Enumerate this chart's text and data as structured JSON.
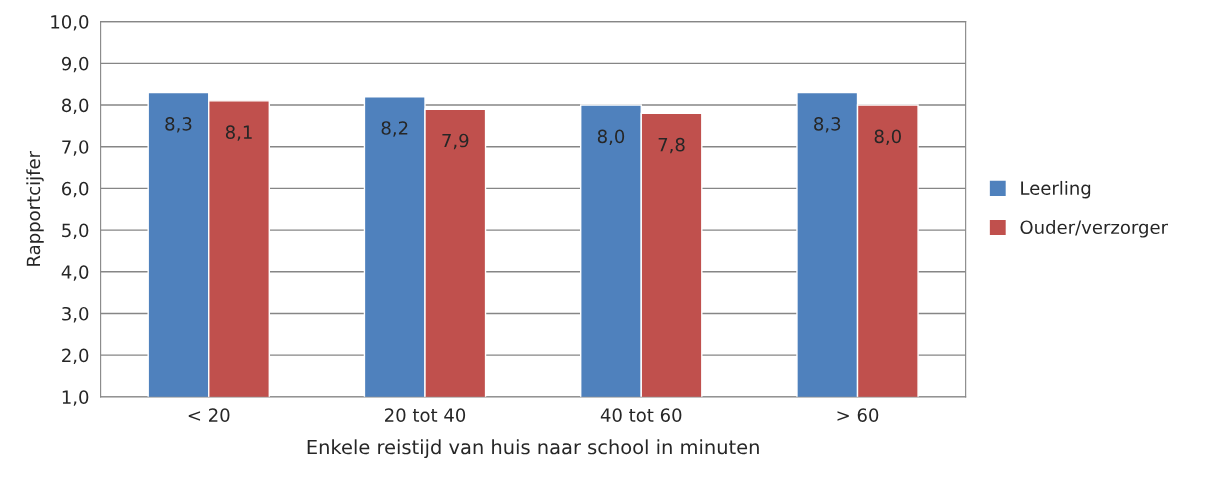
{
  "chart_data": {
    "type": "bar",
    "xlabel": "Enkele reistijd van huis naar school in minuten",
    "ylabel": "Rapportcijfer",
    "categories": [
      "< 20",
      "20 tot 40",
      "40 tot 60",
      "> 60"
    ],
    "series": [
      {
        "name": "Leerling",
        "color": "#4f81bd",
        "values": [
          8.3,
          8.2,
          8.0,
          8.3
        ],
        "value_labels": [
          "8,3",
          "8,2",
          "8,0",
          "8,3"
        ]
      },
      {
        "name": "Ouder/verzorger",
        "color": "#c0504d",
        "values": [
          8.1,
          7.9,
          7.8,
          8.0
        ],
        "value_labels": [
          "8,1",
          "7,9",
          "7,8",
          "8,0"
        ]
      }
    ],
    "ylim": [
      1,
      10
    ],
    "yticks": [
      {
        "value": 1,
        "label": "1,0"
      },
      {
        "value": 2,
        "label": "2,0"
      },
      {
        "value": 3,
        "label": "3,0"
      },
      {
        "value": 4,
        "label": "4,0"
      },
      {
        "value": 5,
        "label": "5,0"
      },
      {
        "value": 6,
        "label": "6,0"
      },
      {
        "value": 7,
        "label": "7,0"
      },
      {
        "value": 8,
        "label": "8,0"
      },
      {
        "value": 9,
        "label": "9,0"
      },
      {
        "value": 10,
        "label": "10,0"
      }
    ],
    "grid": "y",
    "legend": "right"
  }
}
